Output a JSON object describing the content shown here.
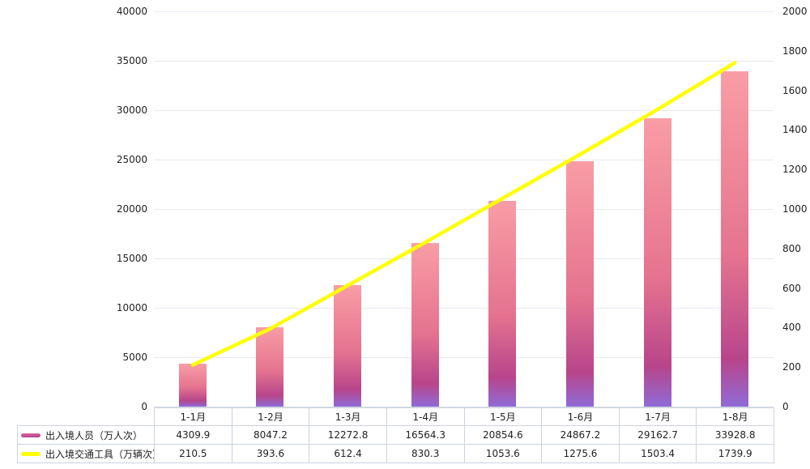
{
  "chart_data": {
    "type": "bar",
    "subtype": "bar-line-dual-axis",
    "title": "",
    "xlabel": "",
    "ylabel_left": "",
    "ylabel_right": "",
    "grid": true,
    "legend_position": "table-left",
    "categories": [
      "1-1月",
      "1-2月",
      "1-3月",
      "1-4月",
      "1-5月",
      "1-6月",
      "1-7月",
      "1-8月"
    ],
    "series": [
      {
        "name": "出入境人员（万人次）",
        "type": "bar",
        "axis": "left",
        "values": [
          4309.9,
          8047.2,
          12272.8,
          16564.3,
          20854.6,
          24867.2,
          29162.7,
          33928.8
        ],
        "colors": {
          "top": "#f99da5",
          "mid": "#e5738f",
          "deep": "#b8458b",
          "bottom": "#8f6bd7"
        }
      },
      {
        "name": "出入境交通工具（万辆次）",
        "type": "line",
        "axis": "right",
        "values": [
          210.5,
          393.6,
          612.4,
          830.3,
          1053.6,
          1275.6,
          1503.4,
          1739.9
        ],
        "color": "#ffff00"
      }
    ],
    "left_axis": {
      "min": 0,
      "max": 40000,
      "step": 5000
    },
    "right_axis": {
      "min": 0,
      "max": 2000,
      "step": 200
    }
  },
  "colors": {
    "background": "#ffffff",
    "gridline": "#e6e9f0",
    "axis_line": "#d9dce4",
    "table_border": "#ccd3df",
    "text": "#222222",
    "legend_bar_swatch_top": "#d9679e",
    "legend_bar_swatch_bottom": "#b2418f"
  }
}
